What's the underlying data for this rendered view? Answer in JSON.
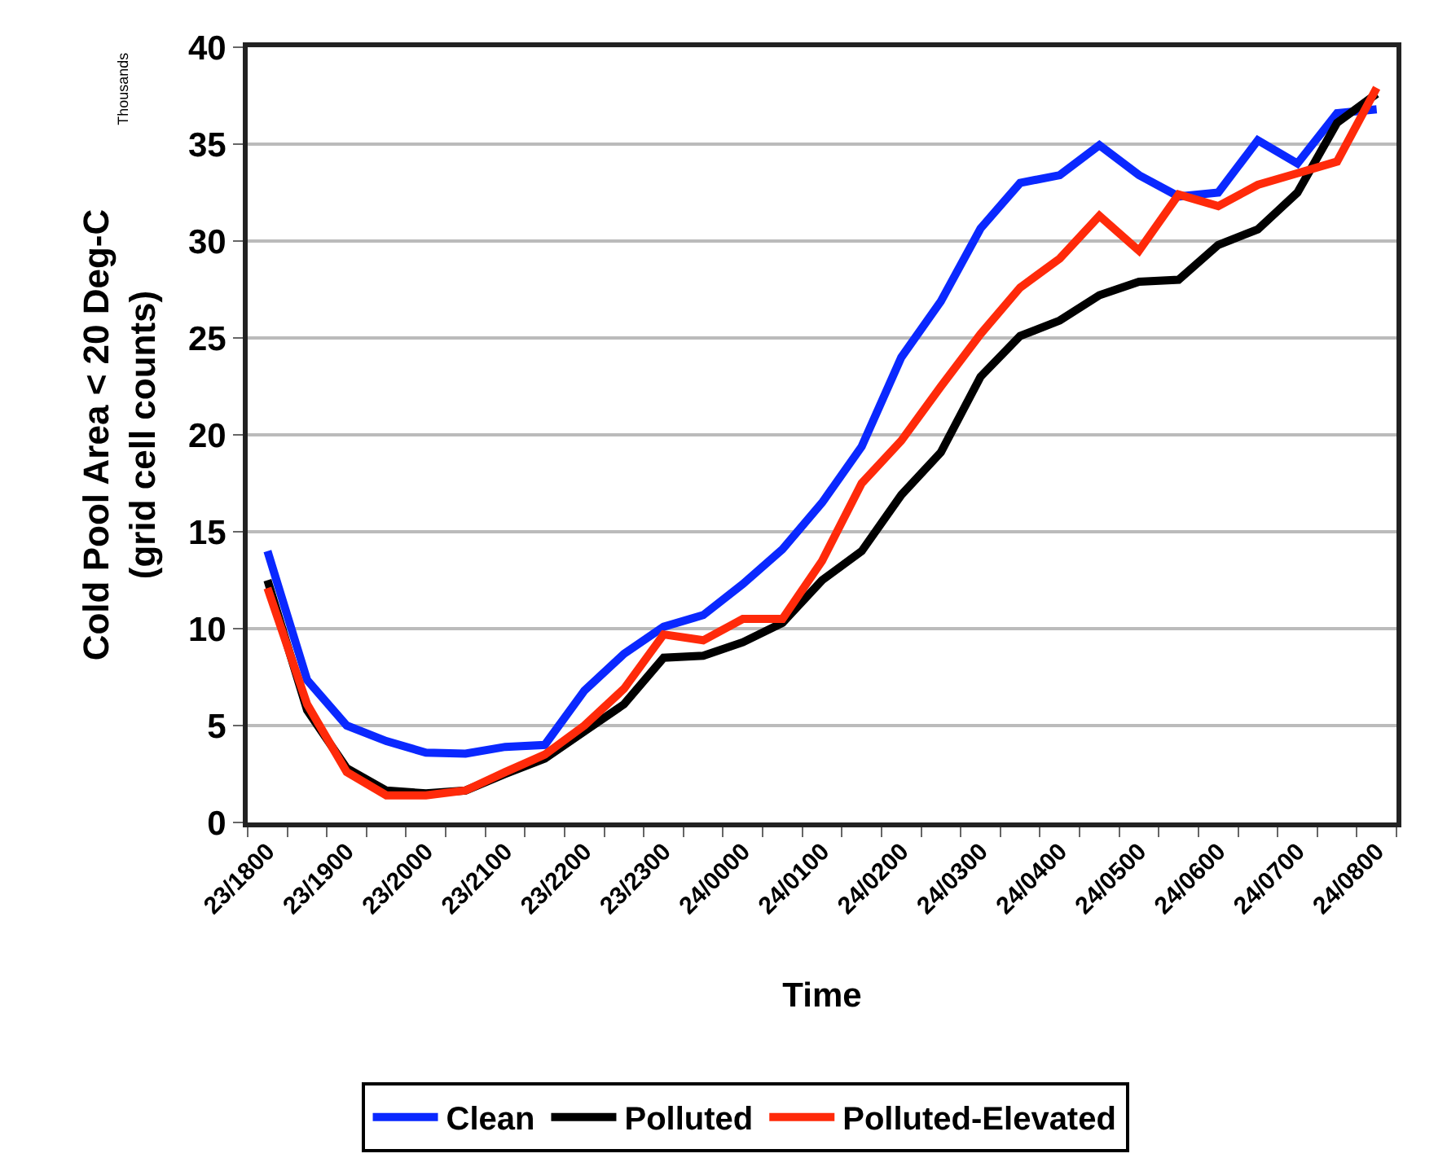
{
  "chart_data": {
    "type": "line",
    "xlabel": "Time",
    "ylabel": "Cold Pool Area < 20 Deg-C\n(grid cell counts)",
    "annotations": [
      "Thousands"
    ],
    "categories": [
      "23/1800",
      null,
      "23/1900",
      null,
      "23/2000",
      null,
      "23/2100",
      null,
      "23/2200",
      null,
      "23/2300",
      null,
      "24/0000",
      null,
      "24/0100",
      null,
      "24/0200",
      null,
      "24/0300",
      null,
      "24/0400",
      null,
      "24/0500",
      null,
      "24/0600",
      null,
      "24/0700",
      null,
      "24/0800"
    ],
    "series": [
      {
        "name": "Clean",
        "color": "#0a28ff",
        "values": [
          14.0,
          7.35,
          5.0,
          4.2,
          3.6,
          3.55,
          3.9,
          4.0,
          6.8,
          8.7,
          10.1,
          10.7,
          12.3,
          14.1,
          16.5,
          19.4,
          24.0,
          26.9,
          30.65,
          33.0,
          33.4,
          34.95,
          33.4,
          32.3,
          32.5,
          35.2,
          34.0,
          36.6,
          36.8
        ]
      },
      {
        "name": "Polluted",
        "color": "#000000",
        "values": [
          12.5,
          5.8,
          2.8,
          1.65,
          1.5,
          1.65,
          2.5,
          3.3,
          4.7,
          6.1,
          8.5,
          8.6,
          9.3,
          10.3,
          12.5,
          14.0,
          16.9,
          19.1,
          23.0,
          25.1,
          25.9,
          27.2,
          27.9,
          28.0,
          29.8,
          30.6,
          32.5,
          36.1,
          37.6
        ]
      },
      {
        "name": "Polluted-Elevated",
        "color": "#ff2a0a",
        "values": [
          12.1,
          6.1,
          2.6,
          1.4,
          1.4,
          1.65,
          2.6,
          3.5,
          5.0,
          6.9,
          9.7,
          9.4,
          10.5,
          10.5,
          13.5,
          17.5,
          19.7,
          22.5,
          25.2,
          27.6,
          29.1,
          31.3,
          29.5,
          32.4,
          31.8,
          32.9,
          33.5,
          34.1,
          37.9
        ]
      }
    ],
    "ylim": [
      0,
      40
    ],
    "yticks": [
      0,
      5,
      10,
      15,
      20,
      25,
      30,
      35,
      40
    ],
    "grid": "y",
    "legend": "bottom",
    "marker": "none",
    "line_style": "solid"
  }
}
